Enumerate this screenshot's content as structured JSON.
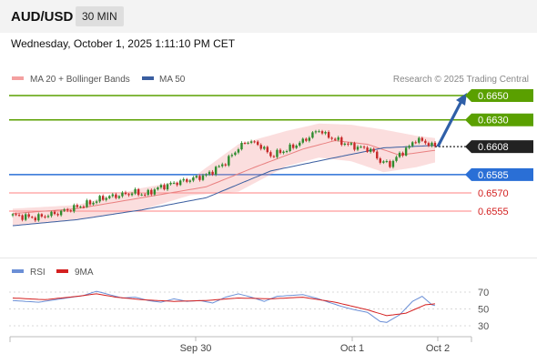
{
  "header": {
    "pair": "AUD/USD",
    "timeframe": "30 MIN",
    "datetime": "Wednesday, October 1, 2025 1:11:10 PM CET"
  },
  "colors": {
    "resistance": "#5aa000",
    "current": "#222222",
    "pivot": "#2a6fd6",
    "support": "#ff8080",
    "candle_up": "#2e8b2e",
    "candle_down": "#c62828",
    "ma20_band": "#f4a0a0",
    "ma50": "#3a5ea0",
    "rsi": "#6b8fd6",
    "rsi_ma": "#d42020",
    "arrow": "#2f5fa8"
  },
  "chart_data": [
    {
      "type": "candlestick",
      "title": "AUD/USD",
      "timeframe": "30 MIN",
      "legend": [
        {
          "name": "MA 20 + Bollinger Bands",
          "color": "#f4a0a0"
        },
        {
          "name": "MA 50",
          "color": "#3a5ea0"
        }
      ],
      "legend_position": "top-left",
      "credit": "Research © 2025 Trading Central",
      "x_ticks": [
        "Sep 30",
        "Oct 1",
        "Oct 2"
      ],
      "ylim": [
        0.6525,
        0.6665
      ],
      "current_price": {
        "value": 0.6608,
        "label": "0.6608"
      },
      "levels": [
        {
          "label": "0.6650",
          "value": 0.665,
          "kind": "resistance"
        },
        {
          "label": "0.6630",
          "value": 0.663,
          "kind": "resistance"
        },
        {
          "label": "0.6585",
          "value": 0.6585,
          "kind": "pivot"
        },
        {
          "label": "0.6570",
          "value": 0.657,
          "kind": "support"
        },
        {
          "label": "0.6555",
          "value": 0.6555,
          "kind": "support"
        }
      ],
      "forecast_arrow": {
        "from": 0.6608,
        "to": 0.665
      },
      "close_path": [
        [
          0,
          0.65515
        ],
        [
          7,
          0.65495
        ],
        [
          14,
          0.65535
        ],
        [
          20,
          0.65585
        ],
        [
          25,
          0.65625
        ],
        [
          28,
          0.6566
        ],
        [
          33,
          0.6568
        ],
        [
          38,
          0.65705
        ],
        [
          41,
          0.65685
        ],
        [
          45,
          0.6574
        ],
        [
          50,
          0.6578
        ],
        [
          55,
          0.6581
        ],
        [
          60,
          0.65845
        ],
        [
          66,
          0.6595
        ],
        [
          70,
          0.6607
        ],
        [
          73,
          0.6613
        ],
        [
          77,
          0.66085
        ],
        [
          80,
          0.66005
        ],
        [
          85,
          0.66055
        ],
        [
          90,
          0.66125
        ],
        [
          95,
          0.6622
        ],
        [
          97,
          0.66175
        ],
        [
          100,
          0.6614
        ],
        [
          104,
          0.66095
        ],
        [
          107,
          0.66075
        ],
        [
          111,
          0.66055
        ],
        [
          114,
          0.6596
        ],
        [
          117,
          0.65935
        ],
        [
          120,
          0.66015
        ],
        [
          123,
          0.6608
        ],
        [
          125,
          0.6614
        ],
        [
          128,
          0.66115
        ],
        [
          131,
          0.6608
        ]
      ],
      "candle_count": 132,
      "ma20": [
        [
          0,
          0.6553
        ],
        [
          20,
          0.6557
        ],
        [
          40,
          0.6566
        ],
        [
          60,
          0.6575
        ],
        [
          75,
          0.6591
        ],
        [
          90,
          0.6606
        ],
        [
          100,
          0.6613
        ],
        [
          110,
          0.661
        ],
        [
          120,
          0.6601
        ],
        [
          131,
          0.6605
        ]
      ],
      "bollinger_upper": [
        [
          0,
          0.6557
        ],
        [
          20,
          0.656
        ],
        [
          40,
          0.6574
        ],
        [
          55,
          0.6581
        ],
        [
          70,
          0.661
        ],
        [
          85,
          0.6621
        ],
        [
          95,
          0.6627
        ],
        [
          105,
          0.6626
        ],
        [
          115,
          0.6622
        ],
        [
          125,
          0.6617
        ],
        [
          131,
          0.6615
        ]
      ],
      "bollinger_lower": [
        [
          0,
          0.6543
        ],
        [
          20,
          0.6548
        ],
        [
          40,
          0.6556
        ],
        [
          55,
          0.6568
        ],
        [
          70,
          0.6571
        ],
        [
          85,
          0.6592
        ],
        [
          95,
          0.6599
        ],
        [
          105,
          0.6596
        ],
        [
          115,
          0.6587
        ],
        [
          125,
          0.6591
        ],
        [
          131,
          0.6595
        ]
      ],
      "ma50": [
        [
          0,
          0.6543
        ],
        [
          20,
          0.6548
        ],
        [
          40,
          0.6556
        ],
        [
          60,
          0.6566
        ],
        [
          80,
          0.6588
        ],
        [
          100,
          0.6599
        ],
        [
          115,
          0.6607
        ],
        [
          131,
          0.6609
        ]
      ]
    },
    {
      "type": "line",
      "legend": [
        {
          "name": "RSI",
          "color": "#6b8fd6"
        },
        {
          "name": "9MA",
          "color": "#d42020"
        }
      ],
      "legend_position": "top-left",
      "y_ticks": [
        "70",
        "50",
        "30"
      ],
      "ylim": [
        20,
        80
      ],
      "rsi": [
        [
          0,
          60
        ],
        [
          8,
          58
        ],
        [
          15,
          62
        ],
        [
          22,
          66
        ],
        [
          26,
          71
        ],
        [
          30,
          67
        ],
        [
          34,
          63
        ],
        [
          38,
          64
        ],
        [
          42,
          60
        ],
        [
          46,
          58
        ],
        [
          50,
          62
        ],
        [
          54,
          59
        ],
        [
          58,
          60
        ],
        [
          62,
          57
        ],
        [
          66,
          64
        ],
        [
          70,
          68
        ],
        [
          74,
          64
        ],
        [
          78,
          59
        ],
        [
          82,
          65
        ],
        [
          86,
          66
        ],
        [
          90,
          67
        ],
        [
          94,
          63
        ],
        [
          98,
          58
        ],
        [
          102,
          53
        ],
        [
          106,
          49
        ],
        [
          110,
          46
        ],
        [
          114,
          35
        ],
        [
          116,
          34
        ],
        [
          120,
          43
        ],
        [
          124,
          59
        ],
        [
          127,
          65
        ],
        [
          130,
          55
        ],
        [
          131,
          54
        ]
      ],
      "rsi_ma": [
        [
          0,
          63
        ],
        [
          10,
          61
        ],
        [
          20,
          65
        ],
        [
          26,
          68
        ],
        [
          32,
          64
        ],
        [
          40,
          61
        ],
        [
          50,
          59
        ],
        [
          60,
          60
        ],
        [
          70,
          63
        ],
        [
          80,
          62
        ],
        [
          90,
          64
        ],
        [
          100,
          58
        ],
        [
          110,
          49
        ],
        [
          116,
          42
        ],
        [
          122,
          45
        ],
        [
          128,
          55
        ],
        [
          131,
          56
        ]
      ]
    }
  ]
}
